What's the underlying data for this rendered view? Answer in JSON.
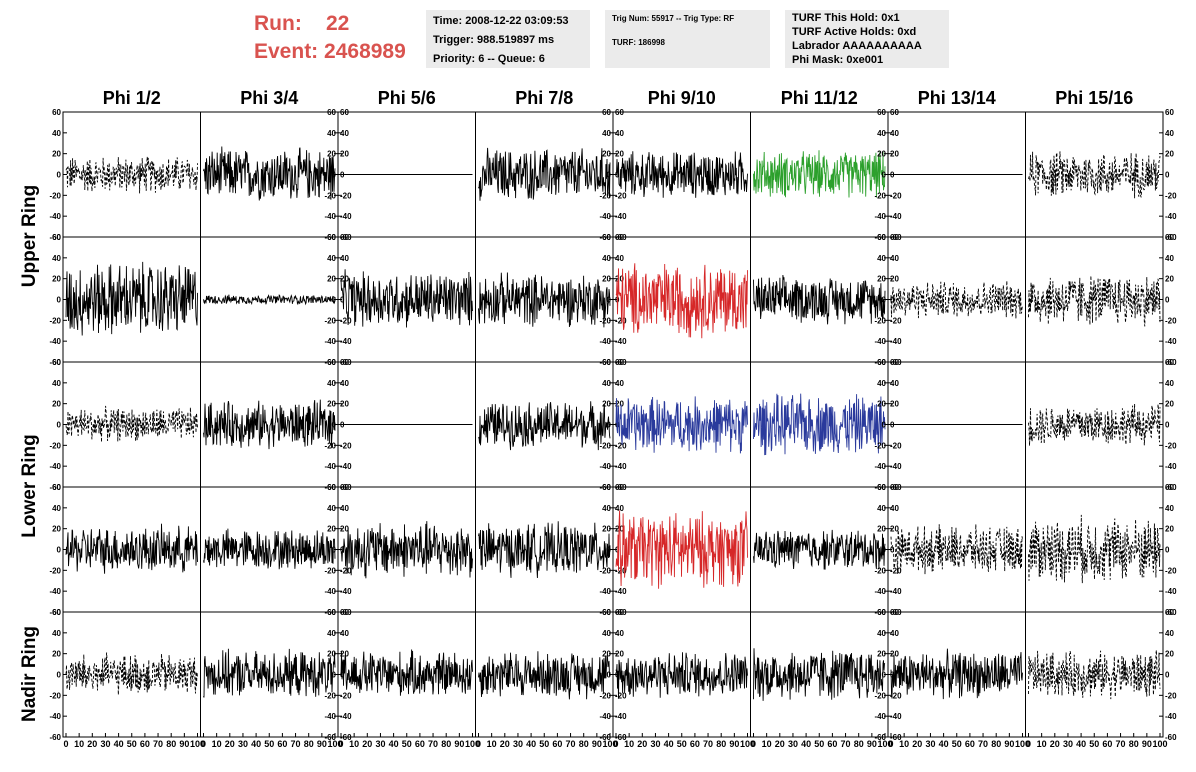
{
  "header": {
    "run_label": "Run:",
    "run_value": "22",
    "event_label": "Event:",
    "event_value": "2468989",
    "time": "Time: 2008-12-22 03:09:53",
    "trigger": "Trigger: 988.519897 ms",
    "priority": "Priority: 6 -- Queue: 6",
    "trig_num": "Trig Num: 55917 -- Trig Type: RF",
    "turf": "TURF: 186998",
    "turf_hold": "TURF This Hold: 0x1",
    "turf_active": "TURF Active Holds: 0xd",
    "labrador": "Labrador AAAAAAAAAA",
    "phi_mask": "Phi Mask: 0xe001"
  },
  "colors": {
    "run_text": "#d9534f",
    "info_bg": "#ebebeb",
    "green": "#2ca02c",
    "red": "#d62728",
    "blue": "#2a3a9c",
    "black": "#000000"
  },
  "chart_data": {
    "type": "line",
    "columns": [
      "Phi 1/2",
      "Phi 3/4",
      "Phi 5/6",
      "Phi 7/8",
      "Phi 9/10",
      "Phi 11/12",
      "Phi 13/14",
      "Phi 15/16"
    ],
    "ring_labels": [
      "Upper Ring",
      "Lower Ring",
      "Nadir Ring"
    ],
    "rows": 5,
    "xlim": [
      0,
      100
    ],
    "ylim": [
      -60,
      60
    ],
    "y_ticks": [
      -60,
      -40,
      -20,
      0,
      20,
      40,
      60
    ],
    "x_ticks": [
      0,
      10,
      20,
      30,
      40,
      50,
      60,
      70,
      80,
      90,
      100
    ],
    "samples": 260,
    "panels": [
      [
        {
          "style": "dashed",
          "amp": 20
        },
        {
          "style": "solid",
          "amp": 28
        },
        {
          "style": "flat",
          "amp": 0
        },
        {
          "style": "solid",
          "amp": 28
        },
        {
          "style": "solid",
          "amp": 25
        },
        {
          "style": "green",
          "amp": 25
        },
        {
          "style": "flat",
          "amp": 0
        },
        {
          "style": "dashed",
          "amp": 25
        }
      ],
      [
        {
          "style": "solid",
          "amp": 40
        },
        {
          "style": "solid",
          "amp": 5
        },
        {
          "style": "solid",
          "amp": 30
        },
        {
          "style": "solid",
          "amp": 28
        },
        {
          "style": "red",
          "amp": 40
        },
        {
          "style": "solid",
          "amp": 25
        },
        {
          "style": "dashed",
          "amp": 20
        },
        {
          "style": "dashed",
          "amp": 28
        }
      ],
      [
        {
          "style": "dashed",
          "amp": 18
        },
        {
          "style": "solid",
          "amp": 25
        },
        {
          "style": "flat",
          "amp": 0
        },
        {
          "style": "solid",
          "amp": 25
        },
        {
          "style": "blue",
          "amp": 30
        },
        {
          "style": "blue",
          "amp": 32
        },
        {
          "style": "flat",
          "amp": 0
        },
        {
          "style": "dashed",
          "amp": 22
        }
      ],
      [
        {
          "style": "solid",
          "amp": 25
        },
        {
          "style": "solid",
          "amp": 22
        },
        {
          "style": "solid",
          "amp": 30
        },
        {
          "style": "solid",
          "amp": 28
        },
        {
          "style": "red",
          "amp": 40
        },
        {
          "style": "solid",
          "amp": 22
        },
        {
          "style": "dashed",
          "amp": 25
        },
        {
          "style": "dashed",
          "amp": 35
        }
      ],
      [
        {
          "style": "dashed",
          "amp": 22
        },
        {
          "style": "solid",
          "amp": 25
        },
        {
          "style": "solid",
          "amp": 25
        },
        {
          "style": "solid",
          "amp": 25
        },
        {
          "style": "solid",
          "amp": 25
        },
        {
          "style": "solid",
          "amp": 28
        },
        {
          "style": "solid",
          "amp": 25
        },
        {
          "style": "dashed",
          "amp": 25
        }
      ]
    ]
  }
}
